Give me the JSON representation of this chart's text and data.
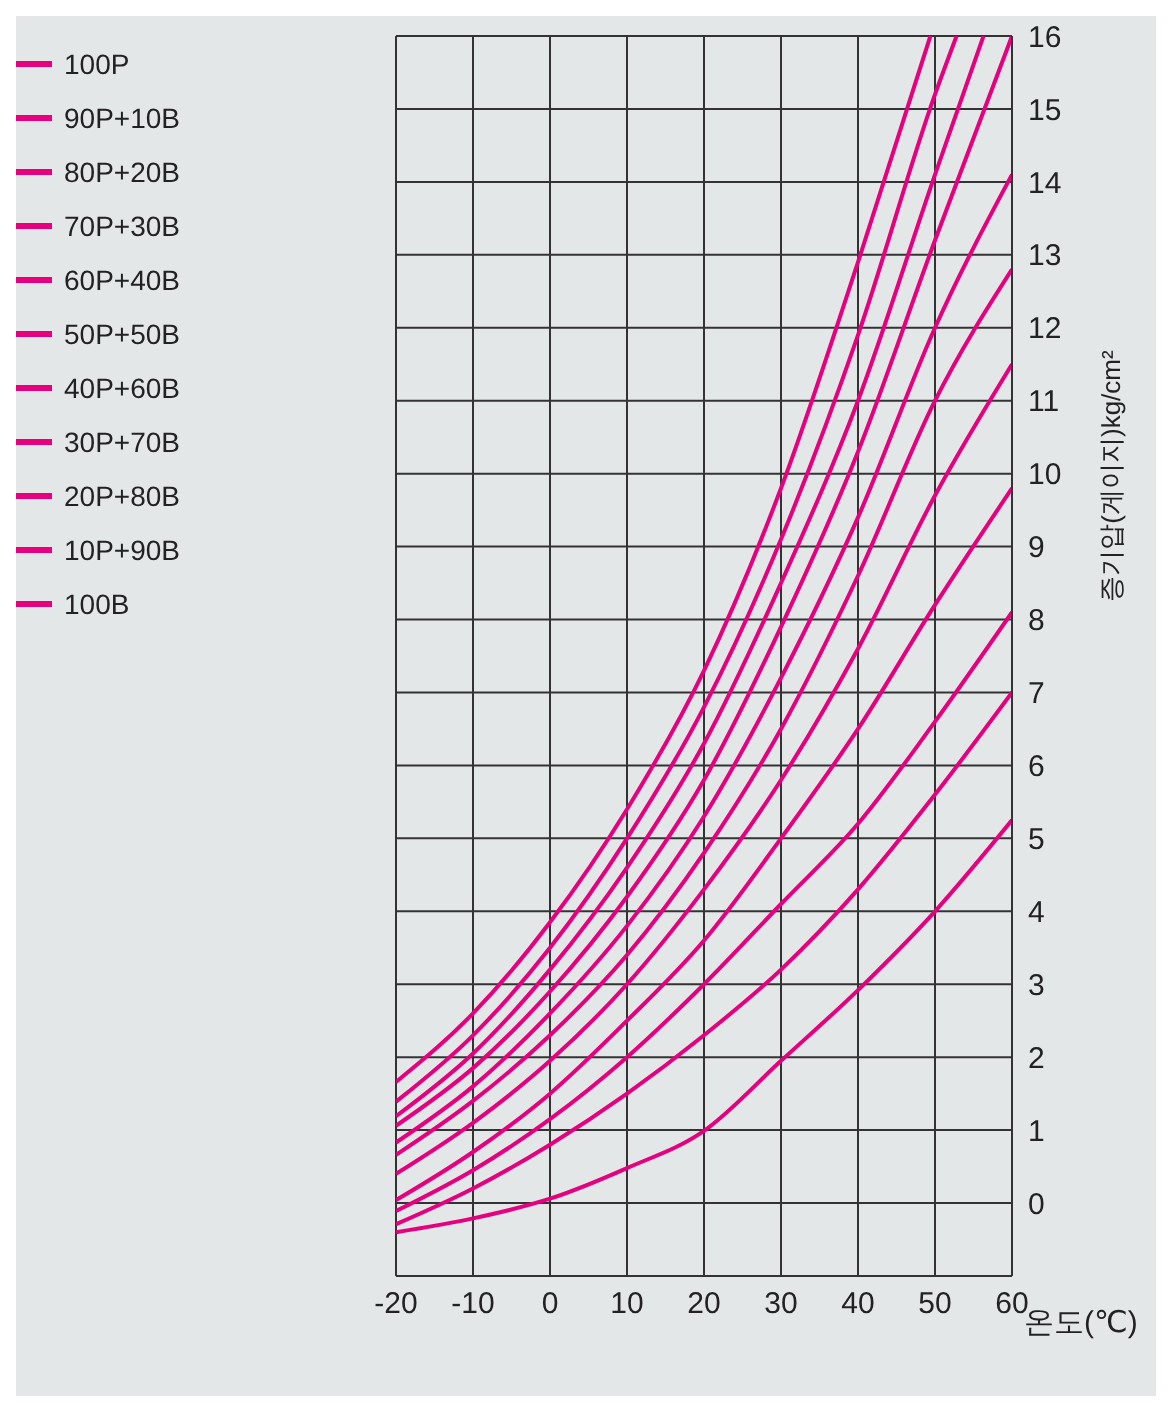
{
  "chart_data": {
    "type": "line",
    "xlabel": "온도(℃)",
    "ylabel": "증기압(게이지)kg/cm²",
    "xlim": [
      -20,
      60
    ],
    "xticks": [
      -20,
      -10,
      0,
      10,
      20,
      30,
      40,
      50,
      60
    ],
    "ylim": [
      -1,
      16
    ],
    "yticks": [
      0,
      1,
      2,
      3,
      4,
      5,
      6,
      7,
      8,
      9,
      10,
      11,
      12,
      13,
      14,
      15,
      16
    ],
    "grid": true,
    "legend": "left",
    "marker": "none",
    "line_style": "solid",
    "series": [
      {
        "name": "100P",
        "color": "#e6007e",
        "x": [
          -20,
          -10,
          0,
          10,
          20,
          30,
          40,
          49.4
        ],
        "values": [
          1.66,
          2.6,
          3.85,
          5.4,
          7.3,
          9.8,
          12.9,
          16
        ]
      },
      {
        "name": "90P+10B",
        "color": "#e6007e",
        "x": [
          -20,
          -10,
          0,
          10,
          20,
          30,
          40,
          50,
          52.8
        ],
        "values": [
          1.39,
          2.3,
          3.5,
          5.0,
          6.8,
          9.1,
          11.9,
          15.2,
          16
        ]
      },
      {
        "name": "80P+20B",
        "color": "#e6007e",
        "x": [
          -20,
          -10,
          0,
          10,
          20,
          30,
          40,
          50,
          56.3
        ],
        "values": [
          1.19,
          2.05,
          3.2,
          4.6,
          6.3,
          8.5,
          11.0,
          14.1,
          16
        ]
      },
      {
        "name": "70P+30B",
        "color": "#e6007e",
        "x": [
          -20,
          -10,
          0,
          10,
          20,
          30,
          40,
          50,
          60
        ],
        "values": [
          1.06,
          1.85,
          2.9,
          4.2,
          5.8,
          7.9,
          10.3,
          13.2,
          16
        ]
      },
      {
        "name": "60P+40B",
        "color": "#e6007e",
        "x": [
          -20,
          -10,
          0,
          10,
          20,
          30,
          40,
          50,
          60
        ],
        "values": [
          0.83,
          1.6,
          2.6,
          3.8,
          5.3,
          7.2,
          9.4,
          12.0,
          14.1
        ]
      },
      {
        "name": "50P+50B",
        "color": "#e6007e",
        "x": [
          -20,
          -10,
          0,
          10,
          20,
          30,
          40,
          50,
          60
        ],
        "values": [
          0.66,
          1.4,
          2.3,
          3.4,
          4.8,
          6.5,
          8.6,
          11.0,
          12.8
        ]
      },
      {
        "name": "40P+60B",
        "color": "#e6007e",
        "x": [
          -20,
          -10,
          0,
          10,
          20,
          30,
          40,
          50,
          60
        ],
        "values": [
          0.4,
          1.1,
          1.95,
          3.0,
          4.3,
          5.8,
          7.6,
          9.7,
          11.5
        ]
      },
      {
        "name": "30P+70B",
        "color": "#e6007e",
        "x": [
          -20,
          -10,
          0,
          10,
          20,
          30,
          40,
          50,
          60
        ],
        "values": [
          0.04,
          0.7,
          1.5,
          2.5,
          3.6,
          5.0,
          6.5,
          8.2,
          9.8
        ]
      },
      {
        "name": "20P+80B",
        "color": "#e6007e",
        "x": [
          -20,
          -10,
          0,
          10,
          20,
          30,
          40,
          50,
          60
        ],
        "values": [
          -0.11,
          0.45,
          1.15,
          2.0,
          3.0,
          4.1,
          5.2,
          6.6,
          8.1
        ]
      },
      {
        "name": "10P+90B",
        "color": "#e6007e",
        "x": [
          -20,
          -10,
          0,
          10,
          20,
          30,
          40,
          50,
          60
        ],
        "values": [
          -0.29,
          0.2,
          0.8,
          1.5,
          2.3,
          3.2,
          4.3,
          5.6,
          7.0
        ]
      },
      {
        "name": "100B",
        "color": "#e6007e",
        "x": [
          -20,
          -10,
          0,
          10,
          20,
          30,
          40,
          50,
          60
        ],
        "values": [
          -0.4,
          -0.21,
          0.06,
          0.48,
          0.99,
          1.95,
          2.92,
          4.0,
          5.25
        ]
      }
    ]
  }
}
